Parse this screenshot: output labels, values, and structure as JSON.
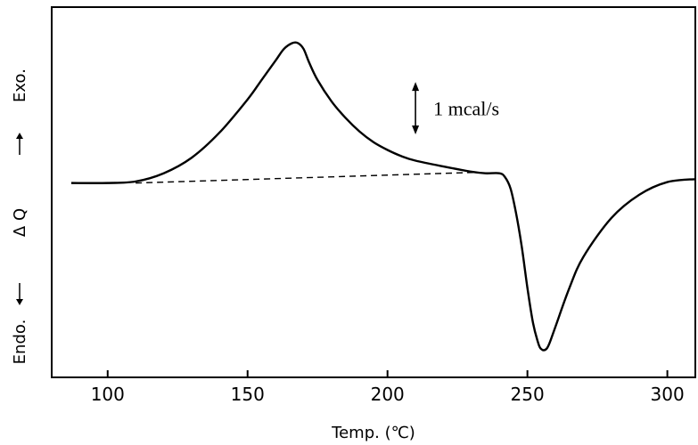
{
  "chart_data": {
    "type": "line",
    "title": "",
    "xlabel": "Temp. (℃)",
    "ylabel": "Endo. ← ΔQ → Exo.",
    "y_label_parts": {
      "endo": "Endo.",
      "dq": "Δ Q",
      "exo": "Exo."
    },
    "xlim": [
      80,
      310
    ],
    "x_ticks": [
      100,
      150,
      200,
      250,
      300
    ],
    "y_ticks": [],
    "grid": false,
    "y_units": "mcal/s (relative)",
    "series": [
      {
        "style": "solid",
        "x": [
          87,
          100,
          110,
          120,
          130,
          140,
          150,
          155,
          160,
          163,
          166,
          168,
          170,
          172,
          175,
          180,
          185,
          190,
          195,
          200,
          205,
          210,
          220,
          230,
          235,
          240,
          242,
          244,
          246,
          248,
          250,
          252,
          254,
          255,
          256,
          257,
          258,
          260,
          265,
          270,
          280,
          290,
          300,
          310
        ],
        "y": [
          0.0,
          0.0,
          0.08,
          0.5,
          1.3,
          2.6,
          4.3,
          5.3,
          6.3,
          6.9,
          7.2,
          7.2,
          6.9,
          6.2,
          5.3,
          4.2,
          3.35,
          2.65,
          2.1,
          1.7,
          1.38,
          1.15,
          0.85,
          0.58,
          0.5,
          0.5,
          0.3,
          -0.3,
          -1.6,
          -3.3,
          -5.4,
          -7.2,
          -8.3,
          -8.55,
          -8.6,
          -8.5,
          -8.2,
          -7.4,
          -5.4,
          -3.8,
          -1.8,
          -0.6,
          0.05,
          0.2
        ]
      },
      {
        "style": "dashed",
        "x": [
          110,
          232
        ],
        "y": [
          0.0,
          0.55
        ]
      }
    ],
    "annotations": [
      {
        "type": "scale-bar",
        "label": "1 mcal/s",
        "x": 210,
        "y_from": 2.5,
        "y_to": 5.2
      }
    ]
  }
}
